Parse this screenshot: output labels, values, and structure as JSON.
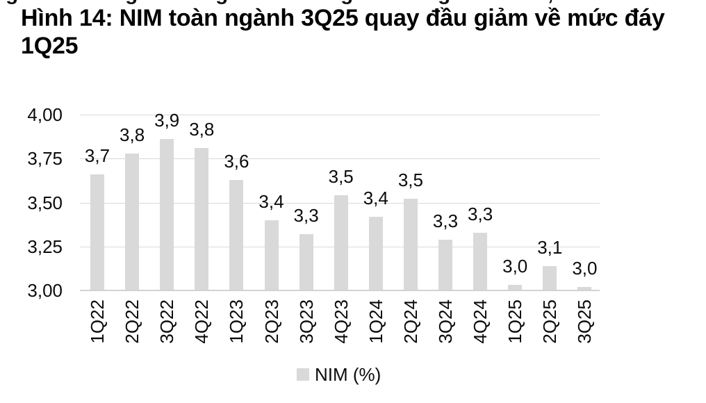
{
  "figure": {
    "title_line1": "Hình 14: NIM toàn ngành 3Q25 quay đầu giảm về mức đáy",
    "title_line2": "1Q25",
    "title_full": "Hình 14: NIM toàn ngành 3Q25 quay đầu giảm về mức đáy 1Q25"
  },
  "legend": {
    "label": "NIM (%)",
    "swatch_color": "#d9d9d9"
  },
  "colors": {
    "bar": "#d9d9d9",
    "gridline": "#d9d9d9",
    "axis_line": "#d2d2d2",
    "text": "#000000",
    "background": "#ffffff"
  },
  "top_fragments": [
    "g",
    "g",
    "g",
    "g",
    "g",
    ",",
    "l"
  ],
  "chart_data": {
    "type": "bar",
    "title": "Hình 14: NIM toàn ngành 3Q25 quay đầu giảm về mức đáy 1Q25",
    "categories": [
      "1Q22",
      "2Q22",
      "3Q22",
      "4Q22",
      "1Q23",
      "2Q23",
      "3Q23",
      "4Q23",
      "1Q24",
      "2Q24",
      "3Q24",
      "4Q24",
      "1Q25",
      "2Q25",
      "3Q25"
    ],
    "values": [
      3.66,
      3.78,
      3.86,
      3.81,
      3.63,
      3.4,
      3.32,
      3.54,
      3.42,
      3.52,
      3.29,
      3.33,
      3.03,
      3.14,
      3.02
    ],
    "data_labels": [
      "3,7",
      "3,8",
      "3,9",
      "3,8",
      "3,6",
      "3,4",
      "3,3",
      "3,5",
      "3,4",
      "3,5",
      "3,3",
      "3,3",
      "3,0",
      "3,1",
      "3,0"
    ],
    "series_name": "NIM (%)",
    "xlabel": "",
    "ylabel": "",
    "ylim": [
      3.0,
      4.0
    ],
    "y_ticks": [
      {
        "value": 3.0,
        "label": "3,00"
      },
      {
        "value": 3.25,
        "label": "3,25"
      },
      {
        "value": 3.5,
        "label": "3,50"
      },
      {
        "value": 3.75,
        "label": "3,75"
      },
      {
        "value": 4.0,
        "label": "4,00"
      }
    ],
    "grid": true,
    "legend_position": "bottom",
    "bar_color": "#d9d9d9",
    "decimal_separator": ","
  }
}
